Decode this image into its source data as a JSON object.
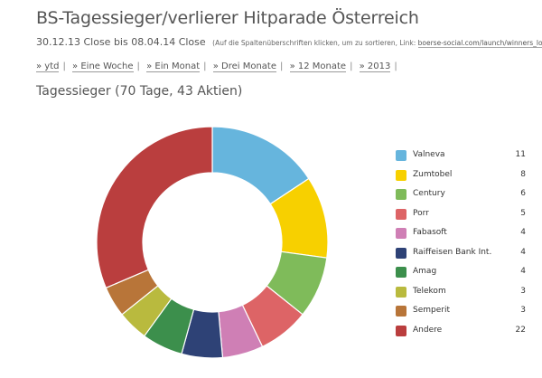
{
  "header": {
    "title": "BS-Tagessieger/verlierer Hitparade Österreich",
    "date_range": "30.12.13 Close bis 08.04.14 Close",
    "hint_prefix": "(Auf die Spaltenüberschriften klicken, um zu sortieren, Link: ",
    "hint_link": "boerse-social.com/launch/winners_losers/at",
    "hint_suffix": ")"
  },
  "nav": [
    {
      "label": "» ytd"
    },
    {
      "label": "» Eine Woche"
    },
    {
      "label": "» Ein Monat"
    },
    {
      "label": "» Drei Monate"
    },
    {
      "label": "» 12 Monate"
    },
    {
      "label": "» 2013"
    }
  ],
  "nav_separator": "|",
  "chart_data": {
    "type": "pie",
    "donut": true,
    "title": "Tagessieger (70 Tage, 43 Aktien)",
    "legend_position": "right",
    "slices": [
      {
        "label": "Valneva",
        "value": 11,
        "color": "#66b5dd"
      },
      {
        "label": "Zumtobel",
        "value": 8,
        "color": "#f7d000"
      },
      {
        "label": "Century",
        "value": 6,
        "color": "#7fbb5a"
      },
      {
        "label": "Porr",
        "value": 5,
        "color": "#dd6466"
      },
      {
        "label": "Fabasoft",
        "value": 4,
        "color": "#cf7fb5"
      },
      {
        "label": "Raiffeisen Bank Int.",
        "value": 4,
        "color": "#2e4276"
      },
      {
        "label": "Amag",
        "value": 4,
        "color": "#3c8f4c"
      },
      {
        "label": "Telekom",
        "value": 3,
        "color": "#b9ba3e"
      },
      {
        "label": "Semperit",
        "value": 3,
        "color": "#b87539"
      },
      {
        "label": "Andere",
        "value": 22,
        "color": "#ba3e3e"
      }
    ]
  }
}
